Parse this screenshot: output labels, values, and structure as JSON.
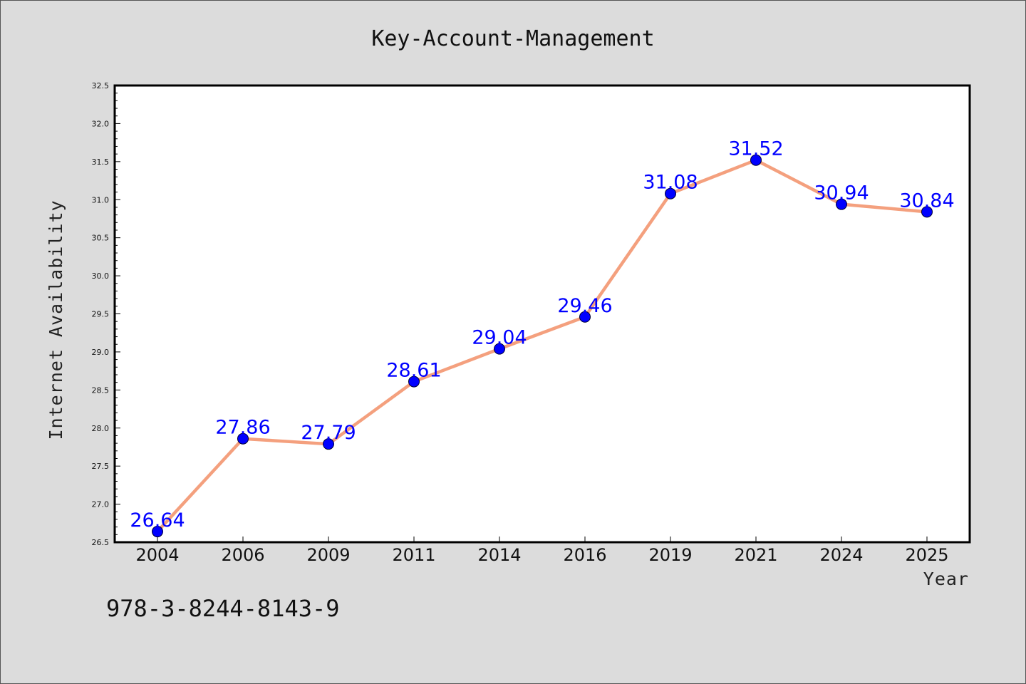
{
  "caption": "978-3-8244-8143-9",
  "colors": {
    "background": "#dcdcdc",
    "plot_background": "#ffffff",
    "line": "#f4a07e",
    "marker": "#0000ff",
    "data_label": "#0000ff"
  },
  "chart_data": {
    "type": "line",
    "title": "Key-Account-Management",
    "xlabel": "Year",
    "ylabel": "Internet Availability",
    "categories": [
      "2004",
      "2006",
      "2009",
      "2011",
      "2014",
      "2016",
      "2019",
      "2021",
      "2024",
      "2025"
    ],
    "series": [
      {
        "values": [
          26.64,
          27.86,
          27.79,
          28.61,
          29.04,
          29.46,
          31.08,
          31.52,
          30.94,
          30.84
        ],
        "labels": [
          "26.64",
          "27.86",
          "27.79",
          "28.61",
          "29.04",
          "29.46",
          "31.08",
          "31.52",
          "30.94",
          "30.84"
        ]
      }
    ],
    "ylim": [
      26.5,
      32.5
    ],
    "yticks": [
      "26.5",
      "27.0",
      "27.5",
      "28.0",
      "28.5",
      "29.0",
      "29.5",
      "30.0",
      "30.5",
      "31.0",
      "31.5",
      "32.0",
      "32.5"
    ],
    "grid": false,
    "legend": "none",
    "data_labels": true
  }
}
